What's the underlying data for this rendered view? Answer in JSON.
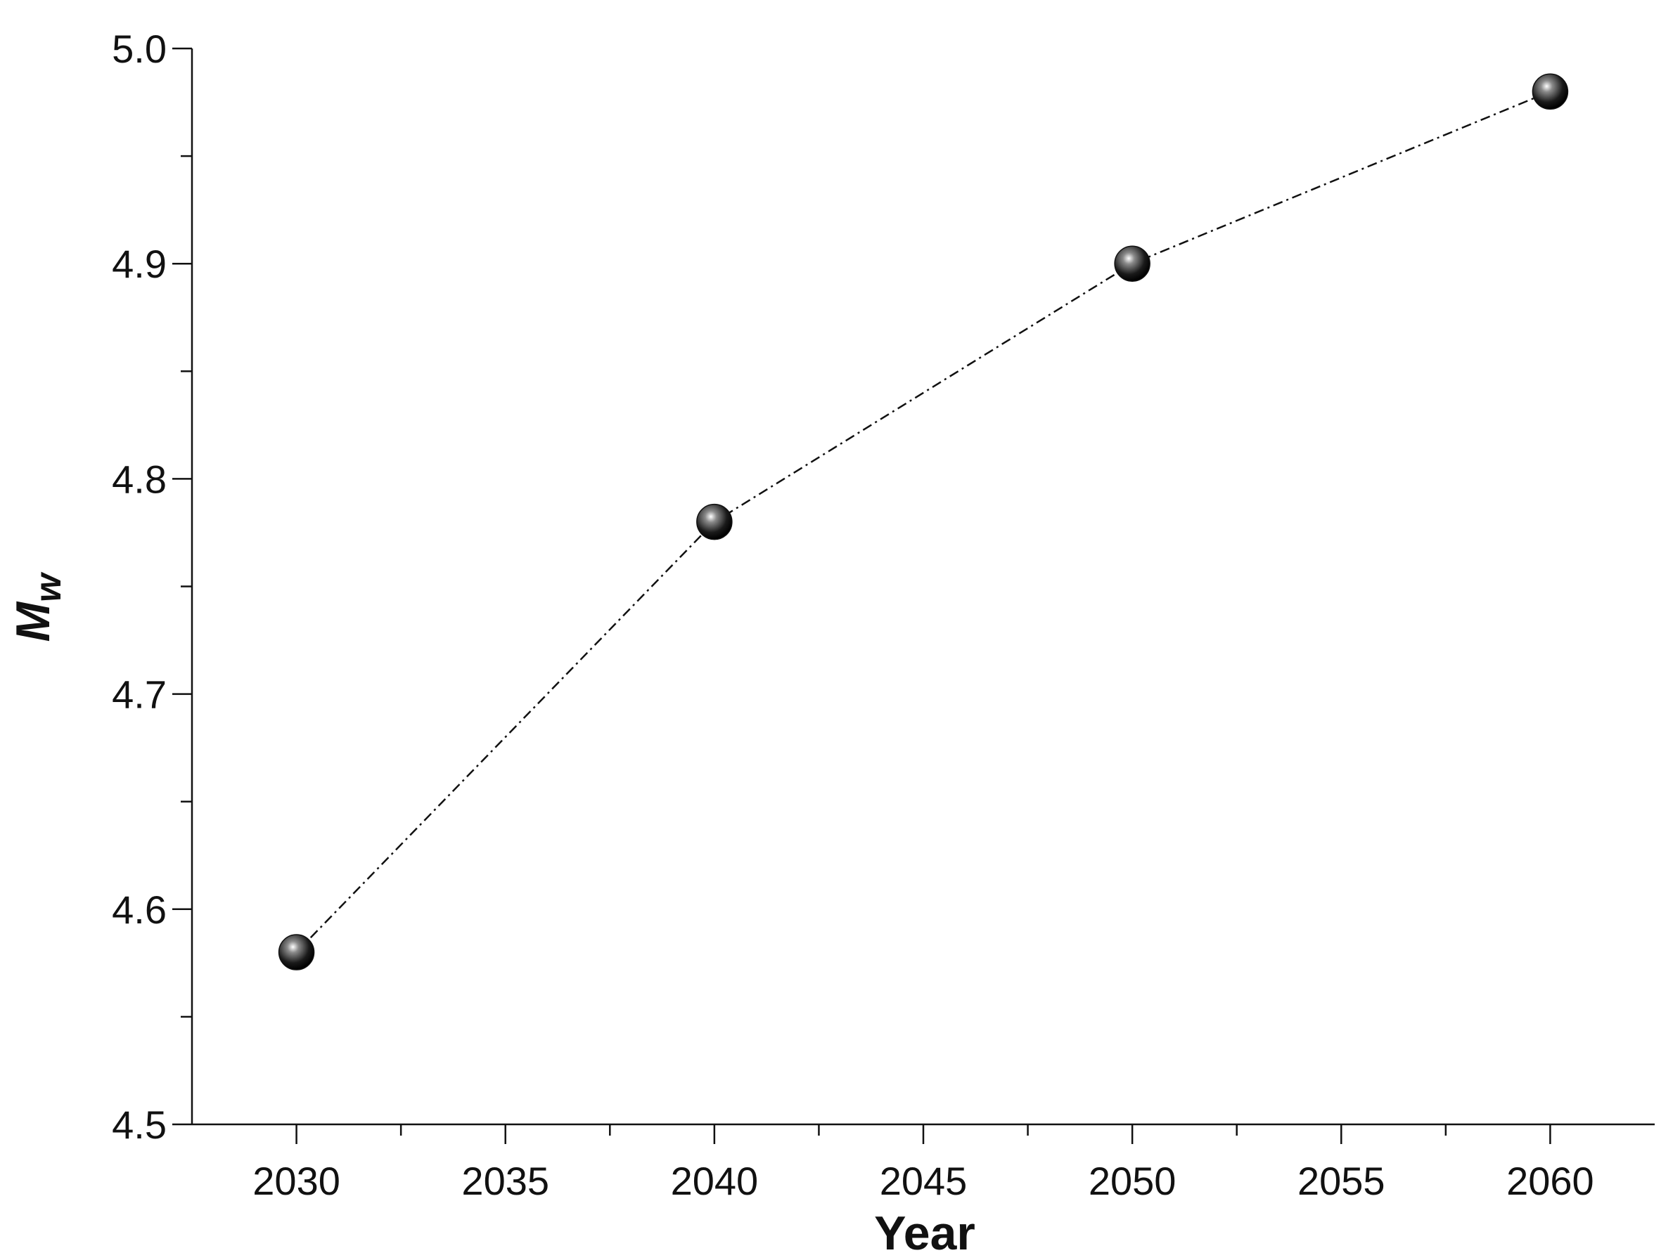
{
  "chart_data": {
    "type": "line",
    "xlabel": "Year",
    "ylabel": "M",
    "ylabel_subscript": "w",
    "x": [
      2030,
      2040,
      2050,
      2060
    ],
    "series": [
      {
        "color": "#111111",
        "values": [
          4.58,
          4.78,
          4.9,
          4.98
        ]
      }
    ],
    "xlim": [
      2027.5,
      2062.5
    ],
    "xticks": [
      2030,
      2035,
      2040,
      2045,
      2050,
      2055,
      2060
    ],
    "ylim": [
      4.5,
      5.0
    ],
    "yticks": [
      4.5,
      4.6,
      4.7,
      4.8,
      4.9,
      {
        "value": 5,
        "label": "5.0"
      }
    ],
    "grid": false
  }
}
